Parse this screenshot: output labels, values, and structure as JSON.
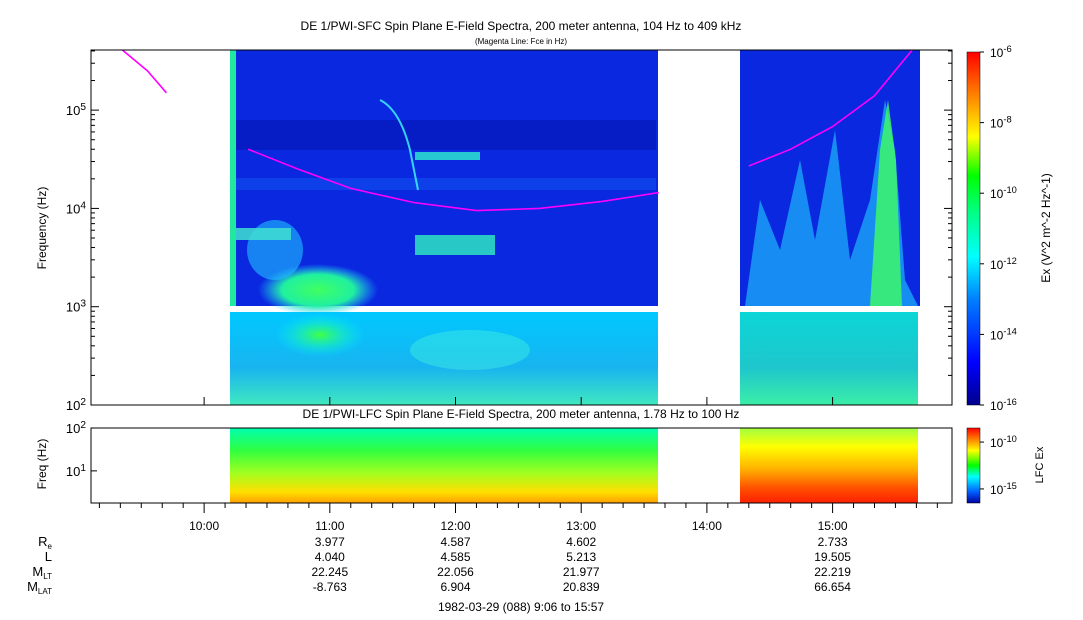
{
  "chart_data": [
    {
      "type": "heatmap",
      "title": "DE 1/PWI-SFC  Spin Plane E-Field Spectra, 200 meter antenna, 104 Hz to 409 kHz",
      "subtitle": "(Magenta Line: Fce in Hz)",
      "ylabel": "Frequency (Hz)",
      "yscale": "log",
      "ylim": [
        100,
        409000
      ],
      "yticks": [
        100,
        1000,
        10000,
        100000
      ],
      "ytick_labels": [
        "10^2",
        "10^3",
        "10^4",
        "10^5"
      ],
      "x_range_time": [
        "09:06",
        "15:57"
      ],
      "data_intervals": [
        [
          "10:19",
          "13:37"
        ],
        [
          "14:17",
          "15:43"
        ]
      ],
      "colorbar": {
        "label": "Ex (V^2 m^-2 Hz^-1)",
        "scale": "log",
        "range": [
          1e-16,
          1e-06
        ],
        "ticks": [
          1e-06,
          1e-08,
          1e-10,
          1e-12,
          1e-14,
          1e-16
        ],
        "tick_labels": [
          "10^-6",
          "10^-8",
          "10^-10",
          "10^-12",
          "10^-14",
          "10^-16"
        ]
      },
      "series": [
        {
          "name": "Fce",
          "color": "#ff00ff",
          "segments": [
            [
              {
                "x": "09:21",
                "y": 409000
              },
              {
                "x": "09:33",
                "y": 250000
              },
              {
                "x": "09:42",
                "y": 150000
              }
            ],
            [
              {
                "x": "10:21",
                "y": 40000
              },
              {
                "x": "10:45",
                "y": 25000
              },
              {
                "x": "11:10",
                "y": 16000
              },
              {
                "x": "11:40",
                "y": 11500
              },
              {
                "x": "12:10",
                "y": 9500
              },
              {
                "x": "12:40",
                "y": 10000
              },
              {
                "x": "13:10",
                "y": 11800
              },
              {
                "x": "13:37",
                "y": 14500
              }
            ],
            [
              {
                "x": "14:20",
                "y": 27000
              },
              {
                "x": "14:40",
                "y": 40000
              },
              {
                "x": "15:00",
                "y": 68000
              },
              {
                "x": "15:20",
                "y": 140000
              },
              {
                "x": "15:38",
                "y": 409000
              }
            ]
          ]
        }
      ]
    },
    {
      "type": "heatmap",
      "title": "DE 1/PWI-LFC  Spin Plane E-Field Spectra, 200 meter antenna, 1.78 Hz to 100 Hz",
      "ylabel": "Freq (Hz)",
      "yscale": "log",
      "ylim": [
        1.78,
        100
      ],
      "yticks": [
        10,
        100
      ],
      "ytick_labels": [
        "10^1",
        "10^2"
      ],
      "colorbar": {
        "label": "LFC Ex",
        "scale": "log",
        "ticks": [
          1e-10,
          1e-15
        ],
        "tick_labels": [
          "10^-10",
          "10^-15"
        ]
      }
    }
  ],
  "time_axis": {
    "ticks": [
      "10:00",
      "11:00",
      "12:00",
      "13:00",
      "14:00",
      "15:00"
    ],
    "range": [
      "09:06",
      "15:57"
    ],
    "date_label": "1982-03-29 (088) 9:06 to 15:57"
  },
  "ephemeris": {
    "rows": [
      {
        "label": "R",
        "sub": "e",
        "values": [
          "3.977",
          "4.587",
          "4.602",
          "",
          "2.733"
        ]
      },
      {
        "label": "L",
        "sub": "",
        "values": [
          "4.040",
          "4.585",
          "5.213",
          "",
          "19.505"
        ]
      },
      {
        "label": "M",
        "sub": "LT",
        "values": [
          "22.245",
          "22.056",
          "21.977",
          "",
          "22.219"
        ]
      },
      {
        "label": "M",
        "sub": "LAT",
        "values": [
          "-8.763",
          "6.904",
          "20.839",
          "",
          "66.654"
        ]
      }
    ]
  }
}
